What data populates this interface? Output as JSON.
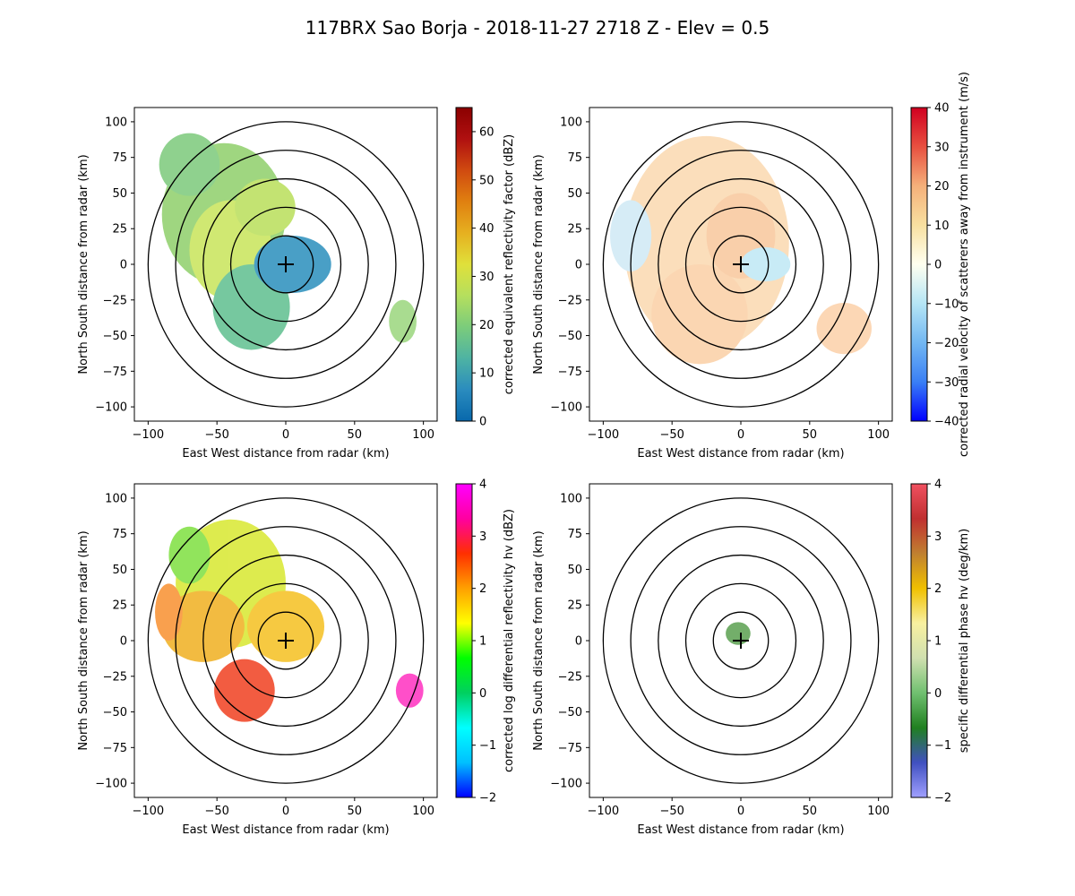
{
  "figure_title": "117BRX Sao Borja - 2018-11-27 2718 Z -  Elev = 0.5",
  "chart_data": [
    {
      "type": "ppi",
      "xlabel": "East West distance from radar (km)",
      "ylabel": "North South distance from radar (km)",
      "xlim": [
        -110,
        110
      ],
      "ylim": [
        -110,
        110
      ],
      "xticks": [
        -100,
        -50,
        0,
        50,
        100
      ],
      "yticks": [
        -100,
        -75,
        -50,
        -25,
        0,
        25,
        50,
        75,
        100
      ],
      "range_rings_km": [
        20,
        40,
        60,
        80,
        100
      ],
      "colorbar": {
        "label": "corrected equivalent reflectivity factor (dBZ)",
        "vmin": 0,
        "vmax": 65,
        "ticks": [
          0,
          10,
          20,
          30,
          40,
          50,
          60
        ],
        "colors": [
          "#0868ac",
          "#2b8cbe",
          "#4eb3a3",
          "#7bcc7b",
          "#b5df5e",
          "#e0e03a",
          "#e6b020",
          "#e08010",
          "#d04a10",
          "#b01010",
          "#8b0000"
        ]
      },
      "echoes": [
        {
          "x": -45,
          "y": 35,
          "rx": 45,
          "ry": 50,
          "color": "#8fd06a"
        },
        {
          "x": -70,
          "y": 70,
          "rx": 22,
          "ry": 22,
          "color": "#7cc97b"
        },
        {
          "x": -40,
          "y": 10,
          "rx": 30,
          "ry": 35,
          "color": "#c8e45a"
        },
        {
          "x": -25,
          "y": -30,
          "rx": 28,
          "ry": 30,
          "color": "#5fbf8f"
        },
        {
          "x": 5,
          "y": 0,
          "rx": 28,
          "ry": 20,
          "color": "#2a8fbd"
        },
        {
          "x": -15,
          "y": 40,
          "rx": 22,
          "ry": 20,
          "color": "#b9df5a"
        },
        {
          "x": 85,
          "y": -40,
          "rx": 10,
          "ry": 15,
          "color": "#9ad67c"
        }
      ]
    },
    {
      "type": "ppi",
      "xlabel": "East West distance from radar (km)",
      "ylabel": "North South distance from radar (km)",
      "xlim": [
        -110,
        110
      ],
      "ylim": [
        -110,
        110
      ],
      "xticks": [
        -100,
        -50,
        0,
        50,
        100
      ],
      "yticks": [
        -100,
        -75,
        -50,
        -25,
        0,
        25,
        50,
        75,
        100
      ],
      "range_rings_km": [
        20,
        40,
        60,
        80,
        100
      ],
      "colorbar": {
        "label": "corrected radial velocity of scatterers away from instrument (m/s)",
        "vmin": -40,
        "vmax": 40,
        "ticks": [
          -40,
          -30,
          -20,
          -10,
          0,
          10,
          20,
          30,
          40
        ],
        "colors": [
          "#0000ff",
          "#3a7ff5",
          "#72b7f2",
          "#b5e5f5",
          "#fffff0",
          "#f8e0a0",
          "#f5b07a",
          "#e85040",
          "#d00020"
        ]
      },
      "echoes": [
        {
          "x": -25,
          "y": 15,
          "rx": 60,
          "ry": 75,
          "color": "#fbd9b0"
        },
        {
          "x": -30,
          "y": -35,
          "rx": 35,
          "ry": 35,
          "color": "#fbd0a5"
        },
        {
          "x": 0,
          "y": 20,
          "rx": 25,
          "ry": 30,
          "color": "#f8c79c"
        },
        {
          "x": 18,
          "y": 0,
          "rx": 18,
          "ry": 12,
          "color": "#bfe8f5"
        },
        {
          "x": 75,
          "y": -45,
          "rx": 20,
          "ry": 18,
          "color": "#fbd0a8"
        },
        {
          "x": -80,
          "y": 20,
          "rx": 15,
          "ry": 25,
          "color": "#cfe9f5"
        }
      ]
    },
    {
      "type": "ppi",
      "xlabel": "East West distance from radar (km)",
      "ylabel": "North South distance from radar (km)",
      "xlim": [
        -110,
        110
      ],
      "ylim": [
        -110,
        110
      ],
      "xticks": [
        -100,
        -50,
        0,
        50,
        100
      ],
      "yticks": [
        -100,
        -75,
        -50,
        -25,
        0,
        25,
        50,
        75,
        100
      ],
      "range_rings_km": [
        20,
        40,
        60,
        80,
        100
      ],
      "colorbar": {
        "label": "corrected log differential reflectivity hv (dBZ)",
        "vmin": -2,
        "vmax": 4,
        "ticks": [
          -2,
          -1,
          0,
          1,
          2,
          3,
          4
        ],
        "colors": [
          "#0000ff",
          "#00c0ff",
          "#00ffff",
          "#00d060",
          "#00ff00",
          "#ffff00",
          "#ffa000",
          "#ff3000",
          "#ff00a0",
          "#ff00ff"
        ]
      },
      "echoes": [
        {
          "x": -40,
          "y": 40,
          "rx": 40,
          "ry": 45,
          "color": "#d8e830"
        },
        {
          "x": -70,
          "y": 60,
          "rx": 15,
          "ry": 20,
          "color": "#7ee040"
        },
        {
          "x": -60,
          "y": 10,
          "rx": 30,
          "ry": 25,
          "color": "#f0b020"
        },
        {
          "x": -30,
          "y": -35,
          "rx": 22,
          "ry": 22,
          "color": "#f04020"
        },
        {
          "x": 0,
          "y": 10,
          "rx": 28,
          "ry": 25,
          "color": "#f5c020"
        },
        {
          "x": 90,
          "y": -35,
          "rx": 10,
          "ry": 12,
          "color": "#ff30c0"
        },
        {
          "x": -85,
          "y": 20,
          "rx": 10,
          "ry": 20,
          "color": "#f89030"
        }
      ]
    },
    {
      "type": "ppi",
      "xlabel": "East West distance from radar (km)",
      "ylabel": "North South distance from radar (km)",
      "xlim": [
        -110,
        110
      ],
      "ylim": [
        -110,
        110
      ],
      "xticks": [
        -100,
        -50,
        0,
        50,
        100
      ],
      "yticks": [
        -100,
        -75,
        -50,
        -25,
        0,
        25,
        50,
        75,
        100
      ],
      "range_rings_km": [
        20,
        40,
        60,
        80,
        100
      ],
      "colorbar": {
        "label": "specific differential phase hv (deg/km)",
        "vmin": -2,
        "vmax": 4,
        "ticks": [
          -2,
          -1,
          0,
          1,
          2,
          3,
          4
        ],
        "colors": [
          "#a0a0ff",
          "#4050c0",
          "#208020",
          "#70c070",
          "#d0e0b0",
          "#f8f0a0",
          "#f0c000",
          "#c08030",
          "#c03030",
          "#f05060"
        ]
      },
      "echoes": [
        {
          "x": -2,
          "y": 5,
          "rx": 9,
          "ry": 8,
          "color": "#5aa050"
        }
      ]
    }
  ]
}
